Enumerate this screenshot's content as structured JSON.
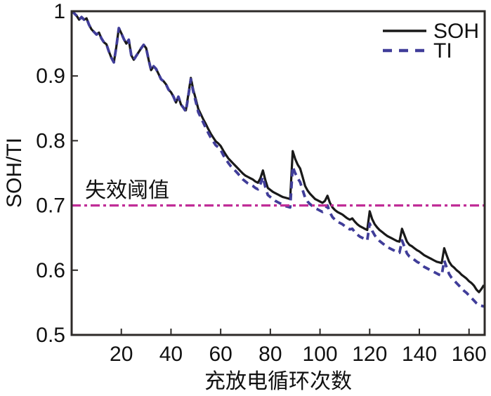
{
  "chart_data": {
    "type": "line",
    "title": "",
    "xlabel": "充放电循环次数",
    "ylabel": "SOH/TI",
    "xlim": [
      0,
      166.3
    ],
    "ylim": [
      0.5,
      1.0
    ],
    "grid": false,
    "x_ticks": [
      20,
      40,
      60,
      80,
      100,
      120,
      140,
      160
    ],
    "x_tick_labels": [
      "20",
      "40",
      "60",
      "80",
      "100",
      "120",
      "140",
      "160"
    ],
    "y_ticks": [
      1,
      0.9,
      0.8,
      0.7,
      0.6,
      0.5
    ],
    "y_tick_labels": [
      "1",
      "0.9",
      "0.8",
      "0.7",
      "0.6",
      "0.5"
    ],
    "threshold": {
      "value": 0.7,
      "label": "失效阈值",
      "color": "#c02d97",
      "style": "dash-dot"
    },
    "legend": {
      "position": "top-right",
      "entries": [
        {
          "name": "SOH",
          "color": "#191919",
          "style": "solid"
        },
        {
          "name": "TI",
          "color": "#403d99",
          "style": "dashed"
        }
      ]
    },
    "x_start": 0,
    "x_step": 1,
    "series": [
      {
        "name": "SOH",
        "color": "#191919",
        "style": "solid",
        "values": [
          1.0,
          0.997,
          0.993,
          0.987,
          0.991,
          0.987,
          0.989,
          0.979,
          0.972,
          0.968,
          0.964,
          0.967,
          0.958,
          0.952,
          0.949,
          0.938,
          0.928,
          0.921,
          0.945,
          0.974,
          0.966,
          0.957,
          0.95,
          0.956,
          0.932,
          0.925,
          0.931,
          0.937,
          0.943,
          0.948,
          0.943,
          0.925,
          0.909,
          0.915,
          0.911,
          0.903,
          0.895,
          0.892,
          0.887,
          0.879,
          0.875,
          0.868,
          0.859,
          0.868,
          0.856,
          0.851,
          0.847,
          0.872,
          0.897,
          0.878,
          0.864,
          0.849,
          0.841,
          0.833,
          0.826,
          0.818,
          0.811,
          0.805,
          0.799,
          0.796,
          0.792,
          0.785,
          0.779,
          0.773,
          0.769,
          0.765,
          0.761,
          0.757,
          0.753,
          0.749,
          0.746,
          0.744,
          0.742,
          0.74,
          0.737,
          0.735,
          0.742,
          0.754,
          0.739,
          0.727,
          0.724,
          0.721,
          0.719,
          0.717,
          0.715,
          0.713,
          0.712,
          0.711,
          0.71,
          0.784,
          0.772,
          0.763,
          0.757,
          0.744,
          0.73,
          0.723,
          0.718,
          0.714,
          0.71,
          0.708,
          0.706,
          0.704,
          0.707,
          0.715,
          0.704,
          0.697,
          0.693,
          0.69,
          0.688,
          0.686,
          0.683,
          0.68,
          0.678,
          0.68,
          0.675,
          0.671,
          0.668,
          0.666,
          0.664,
          0.662,
          0.691,
          0.679,
          0.671,
          0.666,
          0.662,
          0.659,
          0.656,
          0.653,
          0.651,
          0.649,
          0.647,
          0.645,
          0.644,
          0.664,
          0.654,
          0.644,
          0.639,
          0.637,
          0.634,
          0.631,
          0.629,
          0.626,
          0.623,
          0.621,
          0.619,
          0.617,
          0.615,
          0.613,
          0.612,
          0.611,
          0.634,
          0.623,
          0.613,
          0.607,
          0.604,
          0.6,
          0.597,
          0.593,
          0.59,
          0.587,
          0.583,
          0.58,
          0.576,
          0.57,
          0.566,
          0.571,
          0.577
        ]
      },
      {
        "name": "TI",
        "color": "#403d99",
        "style": "dashed",
        "values": [
          1.0,
          0.997,
          0.993,
          0.987,
          0.991,
          0.987,
          0.989,
          0.979,
          0.972,
          0.968,
          0.964,
          0.967,
          0.958,
          0.952,
          0.949,
          0.938,
          0.928,
          0.921,
          0.945,
          0.974,
          0.966,
          0.957,
          0.95,
          0.956,
          0.932,
          0.925,
          0.931,
          0.937,
          0.943,
          0.948,
          0.943,
          0.925,
          0.909,
          0.915,
          0.911,
          0.903,
          0.895,
          0.892,
          0.887,
          0.879,
          0.875,
          0.868,
          0.859,
          0.868,
          0.856,
          0.851,
          0.845,
          0.87,
          0.895,
          0.875,
          0.86,
          0.844,
          0.836,
          0.828,
          0.82,
          0.812,
          0.805,
          0.799,
          0.793,
          0.79,
          0.786,
          0.778,
          0.772,
          0.766,
          0.761,
          0.757,
          0.753,
          0.749,
          0.744,
          0.74,
          0.737,
          0.734,
          0.732,
          0.73,
          0.727,
          0.725,
          0.733,
          0.744,
          0.728,
          0.716,
          0.713,
          0.71,
          0.707,
          0.705,
          0.703,
          0.701,
          0.699,
          0.698,
          0.697,
          0.76,
          0.75,
          0.742,
          0.736,
          0.724,
          0.712,
          0.706,
          0.702,
          0.699,
          0.696,
          0.694,
          0.692,
          0.69,
          0.693,
          0.7,
          0.689,
          0.682,
          0.678,
          0.675,
          0.673,
          0.671,
          0.668,
          0.665,
          0.663,
          0.664,
          0.659,
          0.655,
          0.652,
          0.65,
          0.648,
          0.646,
          0.672,
          0.661,
          0.654,
          0.649,
          0.645,
          0.642,
          0.639,
          0.636,
          0.634,
          0.632,
          0.63,
          0.628,
          0.627,
          0.646,
          0.636,
          0.626,
          0.621,
          0.619,
          0.616,
          0.613,
          0.611,
          0.608,
          0.605,
          0.603,
          0.601,
          0.599,
          0.597,
          0.595,
          0.593,
          0.592,
          0.615,
          0.604,
          0.594,
          0.588,
          0.584,
          0.58,
          0.576,
          0.572,
          0.568,
          0.565,
          0.561,
          0.557,
          0.553,
          0.549,
          0.546,
          0.545,
          0.544
        ]
      }
    ]
  },
  "colors": {
    "axis": "#2d2a28",
    "text": "#111111",
    "background": "#ffffff"
  }
}
